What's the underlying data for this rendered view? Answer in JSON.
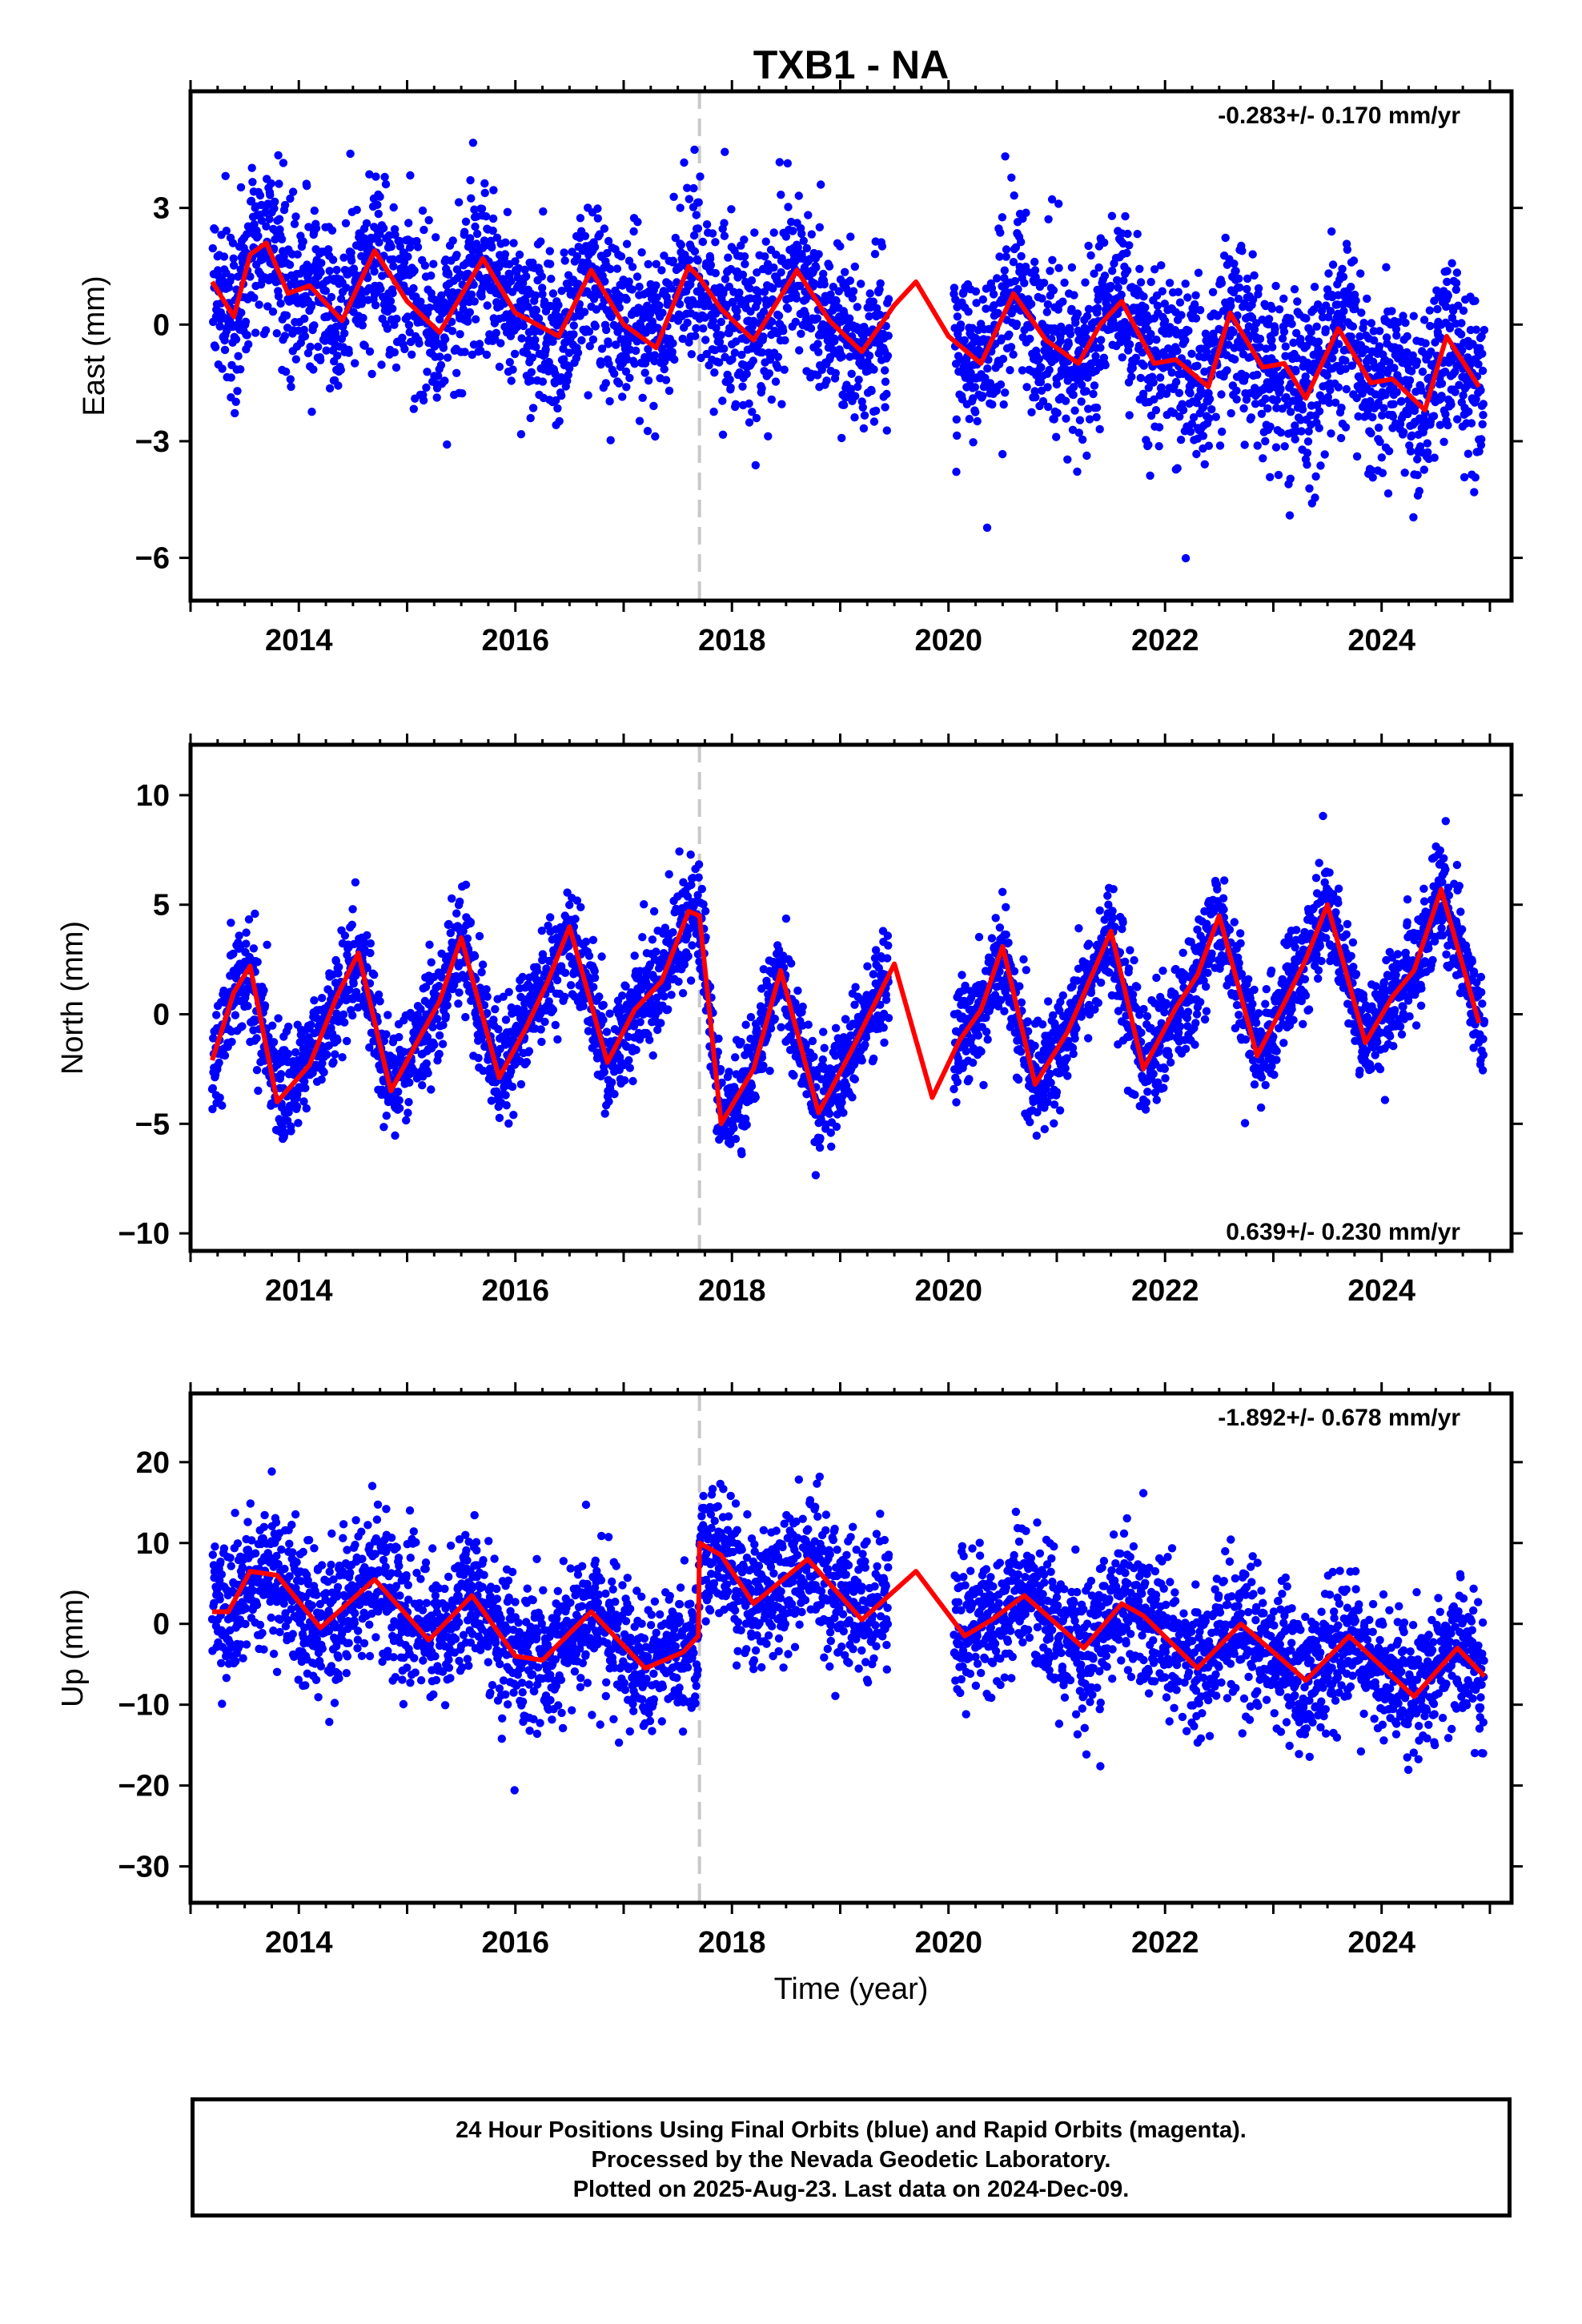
{
  "title": "TXB1 - NA",
  "footer": {
    "line1": "24 Hour Positions Using Final Orbits (blue) and Rapid Orbits (magenta).",
    "line2": "Processed by the Nevada Geodetic Laboratory.",
    "line3": "Plotted on 2025-Aug-23. Last data on 2024-Dec-09."
  },
  "colors": {
    "points": "#0000ff",
    "model": "#ff0000",
    "event_line": "#c8c8c8",
    "axes": "#000000"
  },
  "chart_data": [
    {
      "type": "scatter",
      "component": "east",
      "ylabel": "East (mm)",
      "xlabel": "",
      "xlim": [
        2013.0,
        2025.2
      ],
      "ylim": [
        -7.1,
        6.0
      ],
      "yticks": [
        -6,
        -3,
        0,
        3
      ],
      "ytick_labels": [
        "−6",
        "−3",
        "0",
        "3"
      ],
      "xticks": [
        2014,
        2016,
        2018,
        2020,
        2022,
        2024
      ],
      "xtick_labels": [
        "2014",
        "2016",
        "2018",
        "2020",
        "2022",
        "2024"
      ],
      "rate_text": "-0.283+/- 0.170 mm/yr",
      "rate_position": "top-right",
      "event_line_x": 2017.7,
      "data_start": 2013.2,
      "data_end": 2024.95,
      "data_gap": [
        2019.45,
        2020.05
      ],
      "model": {
        "x": [
          2013.2,
          2013.4,
          2013.55,
          2013.7,
          2013.9,
          2014.1,
          2014.4,
          2014.7,
          2015.0,
          2015.3,
          2015.7,
          2016.0,
          2016.4,
          2016.7,
          2017.0,
          2017.3,
          2017.6,
          2017.7,
          2017.9,
          2018.2,
          2018.6,
          2018.9,
          2019.2,
          2019.5,
          2019.7,
          2020.0,
          2020.3,
          2020.6,
          2020.9,
          2021.2,
          2021.4,
          2021.6,
          2021.9,
          2022.1,
          2022.4,
          2022.6,
          2022.9,
          2023.1,
          2023.3,
          2023.6,
          2023.9,
          2024.1,
          2024.4,
          2024.6,
          2024.9
        ],
        "y": [
          1.1,
          0.2,
          1.8,
          2.1,
          0.8,
          1.0,
          0.1,
          1.9,
          0.6,
          -0.2,
          1.7,
          0.3,
          -0.3,
          1.4,
          0.0,
          -0.6,
          1.5,
          1.2,
          0.4,
          -0.4,
          1.4,
          0.1,
          -0.7,
          0.5,
          1.1,
          -0.3,
          -1.0,
          0.8,
          -0.4,
          -1.0,
          0.0,
          0.6,
          -1.0,
          -0.9,
          -1.6,
          0.3,
          -1.1,
          -1.0,
          -1.9,
          -0.1,
          -1.5,
          -1.4,
          -2.2,
          -0.3,
          -1.6
        ]
      }
    },
    {
      "type": "scatter",
      "component": "north",
      "ylabel": "North (mm)",
      "xlabel": "",
      "xlim": [
        2013.0,
        2025.2
      ],
      "ylim": [
        -10.8,
        12.3
      ],
      "yticks": [
        -10,
        -5,
        0,
        5,
        10
      ],
      "ytick_labels": [
        "−10",
        "−5",
        "0",
        "5",
        "10"
      ],
      "xticks": [
        2014,
        2016,
        2018,
        2020,
        2022,
        2024
      ],
      "xtick_labels": [
        "2014",
        "2016",
        "2018",
        "2020",
        "2022",
        "2024"
      ],
      "rate_text": "0.639+/- 0.230 mm/yr",
      "rate_position": "bottom-right",
      "event_line_x": 2017.7,
      "data_start": 2013.2,
      "data_end": 2024.95,
      "data_gap": [
        2019.45,
        2020.05
      ],
      "model": {
        "x": [
          2013.2,
          2013.4,
          2013.55,
          2013.8,
          2014.1,
          2014.35,
          2014.55,
          2014.85,
          2015.1,
          2015.3,
          2015.5,
          2015.85,
          2016.1,
          2016.3,
          2016.5,
          2016.85,
          2017.1,
          2017.35,
          2017.6,
          2017.7,
          2017.9,
          2018.2,
          2018.45,
          2018.8,
          2019.1,
          2019.5,
          2019.85,
          2020.1,
          2020.3,
          2020.5,
          2020.8,
          2021.1,
          2021.3,
          2021.5,
          2021.8,
          2022.1,
          2022.3,
          2022.5,
          2022.85,
          2023.1,
          2023.3,
          2023.5,
          2023.85,
          2024.1,
          2024.3,
          2024.55,
          2024.9
        ],
        "y": [
          -2.1,
          1.0,
          2.2,
          -4.0,
          -2.3,
          0.8,
          2.8,
          -3.5,
          -1.2,
          0.6,
          3.5,
          -2.9,
          -0.6,
          1.5,
          4.0,
          -2.2,
          0.2,
          1.5,
          4.7,
          4.5,
          -5.0,
          -2.5,
          2.0,
          -4.5,
          -1.7,
          2.3,
          -3.8,
          -1.2,
          0.2,
          3.1,
          -3.2,
          -0.8,
          1.5,
          3.8,
          -2.5,
          0.3,
          1.8,
          4.5,
          -1.9,
          0.5,
          2.5,
          5.0,
          -1.3,
          0.8,
          2.0,
          5.7,
          -0.4
        ]
      }
    },
    {
      "type": "scatter",
      "component": "up",
      "ylabel": "Up (mm)",
      "xlabel": "Time (year)",
      "xlim": [
        2013.0,
        2025.2
      ],
      "ylim": [
        -34.5,
        28.5
      ],
      "yticks": [
        -30,
        -20,
        -10,
        0,
        10,
        20
      ],
      "ytick_labels": [
        "−30",
        "−20",
        "−10",
        "0",
        "10",
        "20"
      ],
      "xticks": [
        2014,
        2016,
        2018,
        2020,
        2022,
        2024
      ],
      "xtick_labels": [
        "2014",
        "2016",
        "2018",
        "2020",
        "2022",
        "2024"
      ],
      "rate_text": "-1.892+/- 0.678 mm/yr",
      "rate_position": "top-right",
      "event_line_x": 2017.7,
      "data_start": 2013.2,
      "data_end": 2024.95,
      "data_gap": [
        2019.45,
        2020.05
      ],
      "model": {
        "x": [
          2013.2,
          2013.35,
          2013.55,
          2013.8,
          2014.2,
          2014.7,
          2015.2,
          2015.6,
          2016.0,
          2016.25,
          2016.7,
          2017.2,
          2017.55,
          2017.69,
          2017.7,
          2017.9,
          2018.2,
          2018.7,
          2019.2,
          2019.7,
          2020.15,
          2020.4,
          2020.7,
          2021.25,
          2021.6,
          2021.8,
          2022.3,
          2022.7,
          2023.3,
          2023.7,
          2024.3,
          2024.7,
          2024.95
        ],
        "y": [
          1.5,
          1.5,
          6.5,
          6.0,
          -0.5,
          5.5,
          -2.0,
          3.5,
          -4.0,
          -4.5,
          1.5,
          -5.5,
          -3.5,
          -1.5,
          10.0,
          8.5,
          2.5,
          8.0,
          0.5,
          6.5,
          -1.5,
          0.5,
          3.5,
          -3.0,
          2.5,
          1.0,
          -5.5,
          0.0,
          -7.0,
          -1.5,
          -9.0,
          -3.0,
          -6.5
        ]
      }
    }
  ]
}
